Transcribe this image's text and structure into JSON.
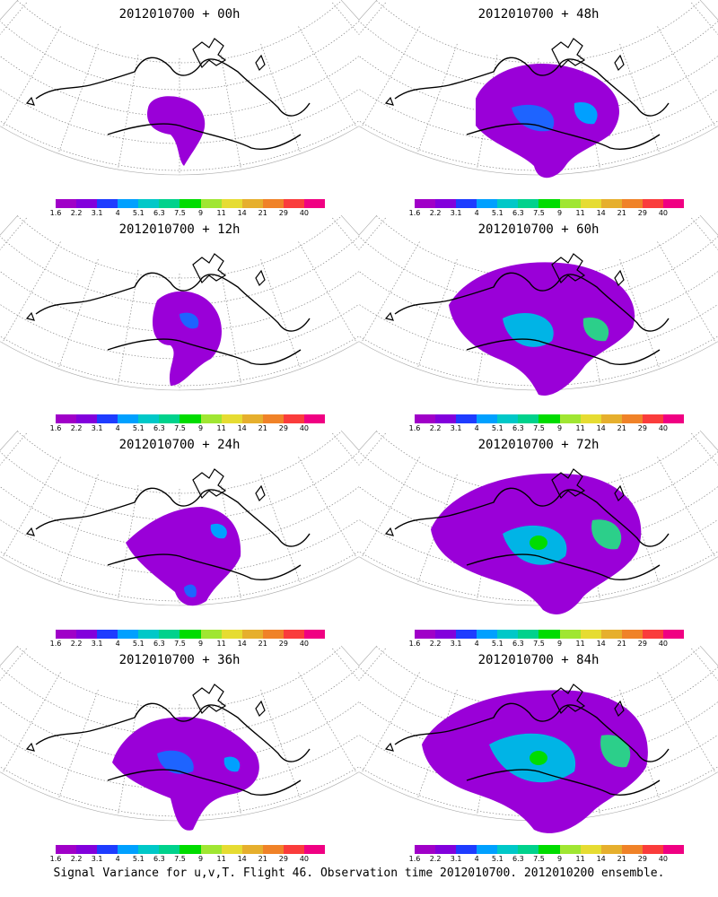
{
  "panels": [
    {
      "title": "2012010700 + 00h",
      "lead_hours": 0
    },
    {
      "title": "2012010700 + 48h",
      "lead_hours": 48
    },
    {
      "title": "2012010700 + 12h",
      "lead_hours": 12
    },
    {
      "title": "2012010700 + 60h",
      "lead_hours": 60
    },
    {
      "title": "2012010700 + 24h",
      "lead_hours": 24
    },
    {
      "title": "2012010700 + 72h",
      "lead_hours": 72
    },
    {
      "title": "2012010700 + 36h",
      "lead_hours": 36
    },
    {
      "title": "2012010700 + 84h",
      "lead_hours": 84
    }
  ],
  "colorbar": {
    "labels": [
      "1.6",
      "2.2",
      "3.1",
      "4",
      "5.1",
      "6.3",
      "7.5",
      "9",
      "11",
      "14",
      "21",
      "29",
      "40"
    ],
    "colors": [
      "#a000c8",
      "#8200dc",
      "#1e3cff",
      "#00a0ff",
      "#00c8c8",
      "#00d28c",
      "#00dc00",
      "#a0e632",
      "#e6dc32",
      "#e6af2d",
      "#f08228",
      "#fa3c3c",
      "#f00082"
    ]
  },
  "footer": "Signal Variance for u,v,T. Flight 46. Observation time 2012010700. 2012010200 ensemble."
}
